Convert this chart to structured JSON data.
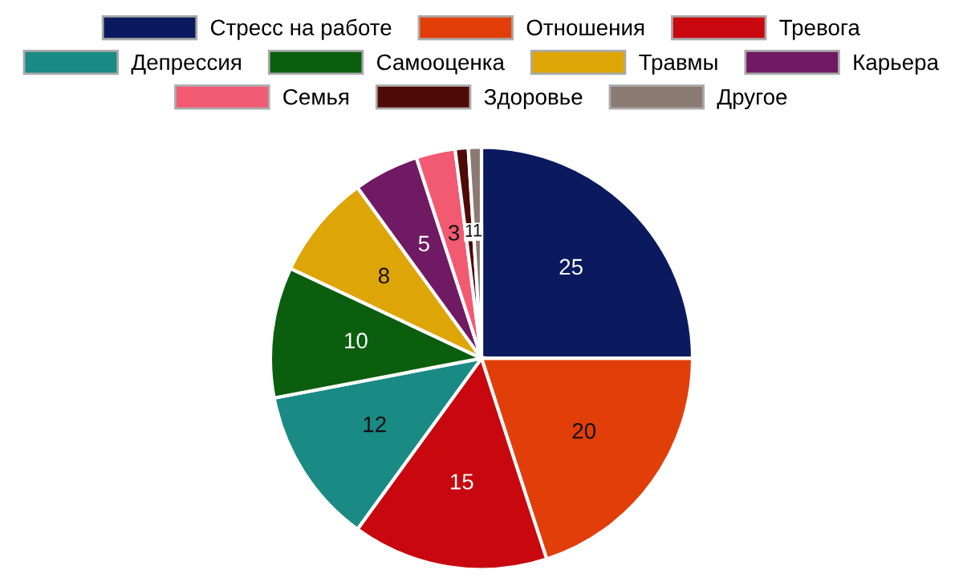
{
  "chart_data": {
    "type": "pie",
    "categories": [
      "Стресс на работе",
      "Отношения",
      "Тревога",
      "Депрессия",
      "Самооценка",
      "Травмы",
      "Карьера",
      "Семья",
      "Здоровье",
      "Другое"
    ],
    "values": [
      25,
      20,
      15,
      12,
      10,
      8,
      5,
      3,
      1,
      1
    ],
    "colors": [
      "#0b1a5e",
      "#e23e0a",
      "#c8070f",
      "#1a8a84",
      "#0b5e0e",
      "#dea507",
      "#701a63",
      "#f25a72",
      "#4e0a07",
      "#8a7a72"
    ],
    "data_labels": true,
    "legend": "top"
  }
}
